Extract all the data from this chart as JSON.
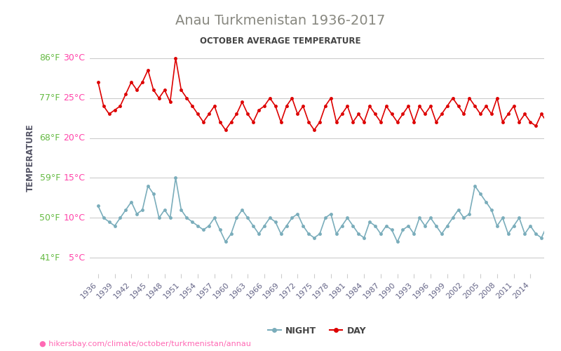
{
  "title": "Anau Turkmenistan 1936-2017",
  "subtitle": "OCTOBER AVERAGE TEMPERATURE",
  "ylabel": "TEMPERATURE",
  "url": "hikersbay.com/climate/october/turkmenistan/annau",
  "title_color": "#888880",
  "subtitle_color": "#444444",
  "ylabel_color": "#555566",
  "background_color": "#ffffff",
  "grid_color": "#cccccc",
  "yticks_c": [
    5,
    10,
    15,
    20,
    25,
    30
  ],
  "ytick_labels_c": [
    "5°C",
    "10°C",
    "15°C",
    "20°C",
    "25°C",
    "30°C"
  ],
  "ytick_labels_f": [
    "41°F",
    "50°F",
    "59°F",
    "68°F",
    "77°F",
    "86°F"
  ],
  "ytick_c_color": "#ff44aa",
  "ytick_f_color": "#66bb44",
  "xtick_years": [
    1936,
    1939,
    1942,
    1945,
    1948,
    1951,
    1954,
    1957,
    1960,
    1963,
    1966,
    1969,
    1972,
    1975,
    1978,
    1981,
    1984,
    1987,
    1990,
    1993,
    1996,
    1999,
    2002,
    2005,
    2008,
    2011,
    2014
  ],
  "ylim_low": 3,
  "ylim_high": 32,
  "xlim_low": 1934.5,
  "xlim_high": 2016.5,
  "day_color": "#dd0000",
  "night_color": "#7aadbb",
  "day_years": [
    1936,
    1937,
    1938,
    1939,
    1940,
    1941,
    1942,
    1943,
    1944,
    1945,
    1946,
    1947,
    1948,
    1949,
    1950,
    1951,
    1952,
    1953,
    1954,
    1955,
    1956,
    1957,
    1958,
    1959,
    1960,
    1961,
    1962,
    1963,
    1964,
    1965,
    1966,
    1967,
    1968,
    1969,
    1970,
    1971,
    1972,
    1973,
    1974,
    1975,
    1976,
    1977,
    1978,
    1979,
    1980,
    1981,
    1982,
    1983,
    1984,
    1985,
    1986,
    1987,
    1988,
    1989,
    1990,
    1991,
    1992,
    1993,
    1994,
    1995,
    1996,
    1997,
    1998,
    1999,
    2000,
    2001,
    2002,
    2003,
    2004,
    2005,
    2006,
    2007,
    2008,
    2009,
    2010,
    2011,
    2012,
    2013,
    2014,
    2015,
    2016,
    2017
  ],
  "day_temps": [
    27.0,
    24.0,
    23.0,
    23.5,
    24.0,
    25.5,
    27.0,
    26.0,
    27.0,
    28.5,
    26.0,
    25.0,
    26.0,
    24.5,
    30.0,
    26.0,
    25.0,
    24.0,
    23.0,
    22.0,
    23.0,
    24.0,
    22.0,
    21.0,
    22.0,
    23.0,
    24.5,
    23.0,
    22.0,
    23.5,
    24.0,
    25.0,
    24.0,
    22.0,
    24.0,
    25.0,
    23.0,
    24.0,
    22.0,
    21.0,
    22.0,
    24.0,
    25.0,
    22.0,
    23.0,
    24.0,
    22.0,
    23.0,
    22.0,
    24.0,
    23.0,
    22.0,
    24.0,
    23.0,
    22.0,
    23.0,
    24.0,
    22.0,
    24.0,
    23.0,
    24.0,
    22.0,
    23.0,
    24.0,
    25.0,
    24.0,
    23.0,
    25.0,
    24.0,
    23.0,
    24.0,
    23.0,
    25.0,
    22.0,
    23.0,
    24.0,
    22.0,
    23.0,
    22.0,
    21.5,
    23.0,
    22.0
  ],
  "night_years": [
    1936,
    1937,
    1938,
    1939,
    1940,
    1941,
    1942,
    1943,
    1944,
    1945,
    1946,
    1947,
    1948,
    1949,
    1950,
    1951,
    1952,
    1953,
    1954,
    1955,
    1956,
    1957,
    1958,
    1959,
    1960,
    1961,
    1962,
    1963,
    1964,
    1965,
    1966,
    1967,
    1968,
    1969,
    1970,
    1971,
    1972,
    1973,
    1974,
    1975,
    1976,
    1977,
    1978,
    1979,
    1980,
    1981,
    1982,
    1983,
    1984,
    1985,
    1986,
    1987,
    1988,
    1989,
    1990,
    1991,
    1992,
    1993,
    1994,
    1995,
    1996,
    1997,
    1998,
    1999,
    2000,
    2001,
    2002,
    2003,
    2004,
    2005,
    2006,
    2007,
    2008,
    2009,
    2010,
    2011,
    2012,
    2013,
    2014,
    2015,
    2016,
    2017
  ],
  "night_temps": [
    11.5,
    10.0,
    9.5,
    9.0,
    10.0,
    11.0,
    12.0,
    10.5,
    11.0,
    14.0,
    13.0,
    10.0,
    11.0,
    10.0,
    15.0,
    11.0,
    10.0,
    9.5,
    9.0,
    8.5,
    9.0,
    10.0,
    8.5,
    7.0,
    8.0,
    10.0,
    11.0,
    10.0,
    9.0,
    8.0,
    9.0,
    10.0,
    9.5,
    8.0,
    9.0,
    10.0,
    10.5,
    9.0,
    8.0,
    7.5,
    8.0,
    10.0,
    10.5,
    8.0,
    9.0,
    10.0,
    9.0,
    8.0,
    7.5,
    9.5,
    9.0,
    8.0,
    9.0,
    8.5,
    7.0,
    8.5,
    9.0,
    8.0,
    10.0,
    9.0,
    10.0,
    9.0,
    8.0,
    9.0,
    10.0,
    11.0,
    10.0,
    10.5,
    14.0,
    13.0,
    12.0,
    11.0,
    9.0,
    10.0,
    8.0,
    9.0,
    10.0,
    8.0,
    9.0,
    8.0,
    7.5,
    9.0
  ]
}
